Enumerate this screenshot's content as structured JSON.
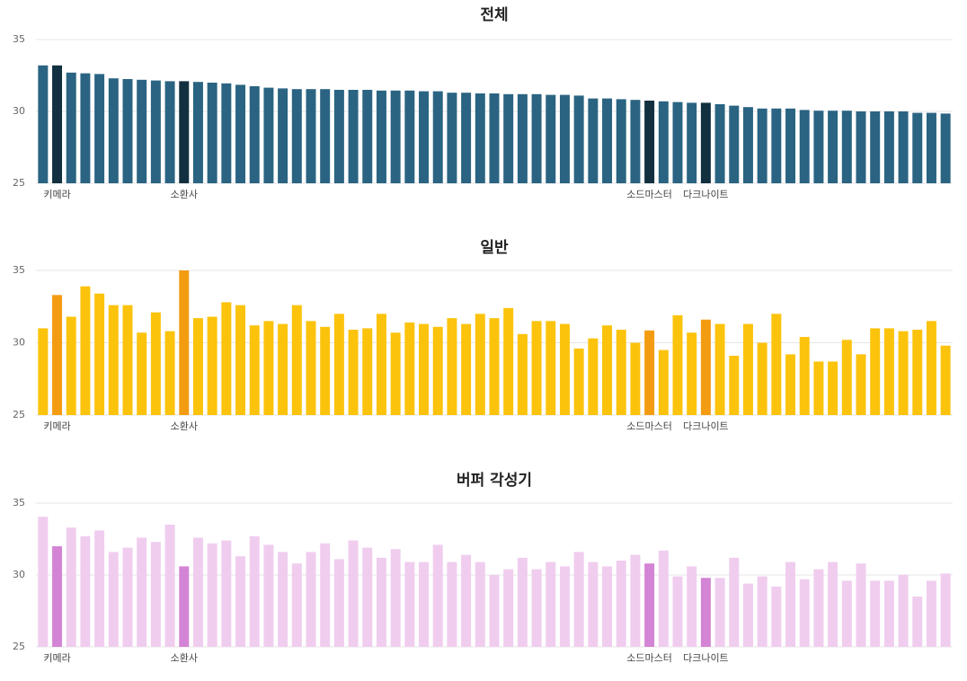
{
  "chart_data": [
    {
      "type": "bar",
      "title": "전체",
      "categories": [
        null,
        "키메라",
        null,
        null,
        null,
        null,
        null,
        null,
        null,
        null,
        "소환사",
        null,
        null,
        null,
        null,
        null,
        null,
        null,
        null,
        null,
        null,
        null,
        null,
        null,
        null,
        null,
        null,
        null,
        null,
        null,
        null,
        null,
        null,
        null,
        null,
        null,
        null,
        null,
        null,
        null,
        null,
        null,
        null,
        "소드마스터",
        null,
        null,
        null,
        "다크나이트",
        null,
        null,
        null,
        null,
        null,
        null,
        null,
        null,
        null,
        null,
        null,
        null,
        null,
        null,
        null,
        null,
        null
      ],
      "values": [
        33.2,
        33.2,
        32.7,
        32.65,
        32.6,
        32.3,
        32.25,
        32.2,
        32.15,
        32.1,
        32.1,
        32.05,
        32.0,
        31.95,
        31.85,
        31.75,
        31.65,
        31.6,
        31.55,
        31.55,
        31.55,
        31.5,
        31.5,
        31.5,
        31.45,
        31.45,
        31.45,
        31.4,
        31.4,
        31.3,
        31.3,
        31.25,
        31.25,
        31.2,
        31.2,
        31.2,
        31.15,
        31.15,
        31.1,
        30.9,
        30.9,
        30.85,
        30.8,
        30.75,
        30.7,
        30.65,
        30.6,
        30.6,
        30.5,
        30.4,
        30.3,
        30.2,
        30.2,
        30.2,
        30.1,
        30.05,
        30.05,
        30.05,
        30.0,
        30.0,
        30.0,
        30.0,
        29.9,
        29.9,
        29.85
      ],
      "color": "#2a6482",
      "highlight_color": "#12303f",
      "ylim": [
        25,
        35
      ],
      "yticks": [
        25,
        30,
        35
      ],
      "grid": true
    },
    {
      "type": "bar",
      "title": "일반",
      "categories": [
        null,
        "키메라",
        null,
        null,
        null,
        null,
        null,
        null,
        null,
        null,
        "소환사",
        null,
        null,
        null,
        null,
        null,
        null,
        null,
        null,
        null,
        null,
        null,
        null,
        null,
        null,
        null,
        null,
        null,
        null,
        null,
        null,
        null,
        null,
        null,
        null,
        null,
        null,
        null,
        null,
        null,
        null,
        null,
        null,
        "소드마스터",
        null,
        null,
        null,
        "다크나이트",
        null,
        null,
        null,
        null,
        null,
        null,
        null,
        null,
        null,
        null,
        null,
        null,
        null,
        null,
        null,
        null,
        null
      ],
      "values": [
        31.0,
        33.3,
        31.8,
        33.9,
        33.4,
        32.6,
        32.6,
        30.7,
        32.1,
        30.8,
        35.0,
        31.7,
        31.8,
        32.8,
        32.6,
        31.2,
        31.5,
        31.3,
        32.6,
        31.5,
        31.1,
        32.0,
        30.9,
        31.0,
        32.0,
        30.7,
        31.4,
        31.3,
        31.1,
        31.7,
        31.3,
        32.0,
        31.7,
        32.4,
        30.6,
        31.5,
        31.5,
        31.3,
        29.6,
        30.3,
        31.2,
        30.9,
        30.0,
        30.85,
        29.5,
        31.9,
        30.7,
        31.6,
        31.3,
        29.1,
        31.3,
        30.0,
        32.0,
        29.2,
        30.4,
        28.7,
        28.7,
        30.2,
        29.2,
        31.0,
        31.0,
        30.8,
        30.9,
        31.5,
        29.8
      ],
      "color": "#fcc30d",
      "highlight_color": "#f39c12",
      "ylim": [
        25,
        35
      ],
      "yticks": [
        25,
        30,
        35
      ],
      "grid": true
    },
    {
      "type": "bar",
      "title": "버퍼 각성기",
      "categories": [
        null,
        "키메라",
        null,
        null,
        null,
        null,
        null,
        null,
        null,
        null,
        "소환사",
        null,
        null,
        null,
        null,
        null,
        null,
        null,
        null,
        null,
        null,
        null,
        null,
        null,
        null,
        null,
        null,
        null,
        null,
        null,
        null,
        null,
        null,
        null,
        null,
        null,
        null,
        null,
        null,
        null,
        null,
        null,
        null,
        "소드마스터",
        null,
        null,
        null,
        "다크나이트",
        null,
        null,
        null,
        null,
        null,
        null,
        null,
        null,
        null,
        null,
        null,
        null,
        null,
        null,
        null,
        null,
        null
      ],
      "values": [
        34.05,
        32.0,
        33.3,
        32.7,
        33.1,
        31.6,
        31.9,
        32.6,
        32.3,
        33.5,
        30.6,
        32.6,
        32.2,
        32.4,
        31.3,
        32.7,
        32.1,
        31.6,
        30.8,
        31.6,
        32.2,
        31.1,
        32.4,
        31.9,
        31.2,
        31.8,
        30.9,
        30.9,
        32.1,
        30.9,
        31.4,
        30.9,
        30.0,
        30.4,
        31.2,
        30.4,
        30.9,
        30.6,
        31.6,
        30.9,
        30.6,
        31.0,
        31.4,
        30.8,
        31.7,
        29.9,
        30.6,
        29.8,
        29.8,
        31.2,
        29.4,
        29.9,
        29.2,
        30.9,
        29.7,
        30.4,
        30.9,
        29.6,
        30.8,
        29.6,
        29.6,
        30.0,
        28.5,
        29.6,
        30.1
      ],
      "color": "#f0cdef",
      "highlight_color": "#d484d4",
      "ylim": [
        25,
        35
      ],
      "yticks": [
        25,
        30,
        35
      ],
      "grid": true
    }
  ]
}
